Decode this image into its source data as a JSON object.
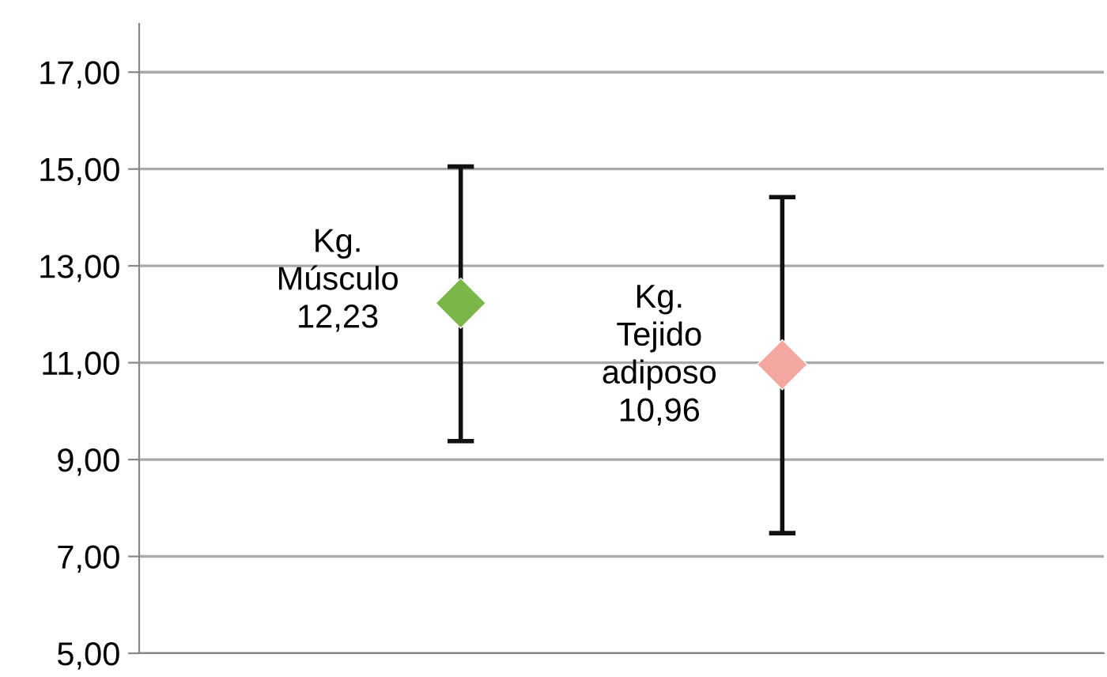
{
  "chart_data": {
    "type": "scatter",
    "categories": [
      null,
      null
    ],
    "values": [
      12.23,
      10.96
    ],
    "colors": [
      "#7ab648",
      "#f4a6a0"
    ],
    "errors": [
      [
        9.38,
        15.05
      ],
      [
        7.48,
        14.42
      ]
    ],
    "value_labels": [
      "Kg.\nMúsculo\n12,23",
      "Kg.\nTejido\nadiposo\n10,96"
    ],
    "marker": "diamond",
    "grid": "y",
    "ylim": [
      5,
      18
    ],
    "yticks": [
      {
        "value": 5,
        "label": "5,00"
      },
      {
        "value": 7,
        "label": "7,00"
      },
      {
        "value": 9,
        "label": "9,00"
      },
      {
        "value": 11,
        "label": "11,00"
      },
      {
        "value": 13,
        "label": "13,00"
      },
      {
        "value": 15,
        "label": "15,00"
      },
      {
        "value": 17,
        "label": "17,00"
      }
    ]
  }
}
